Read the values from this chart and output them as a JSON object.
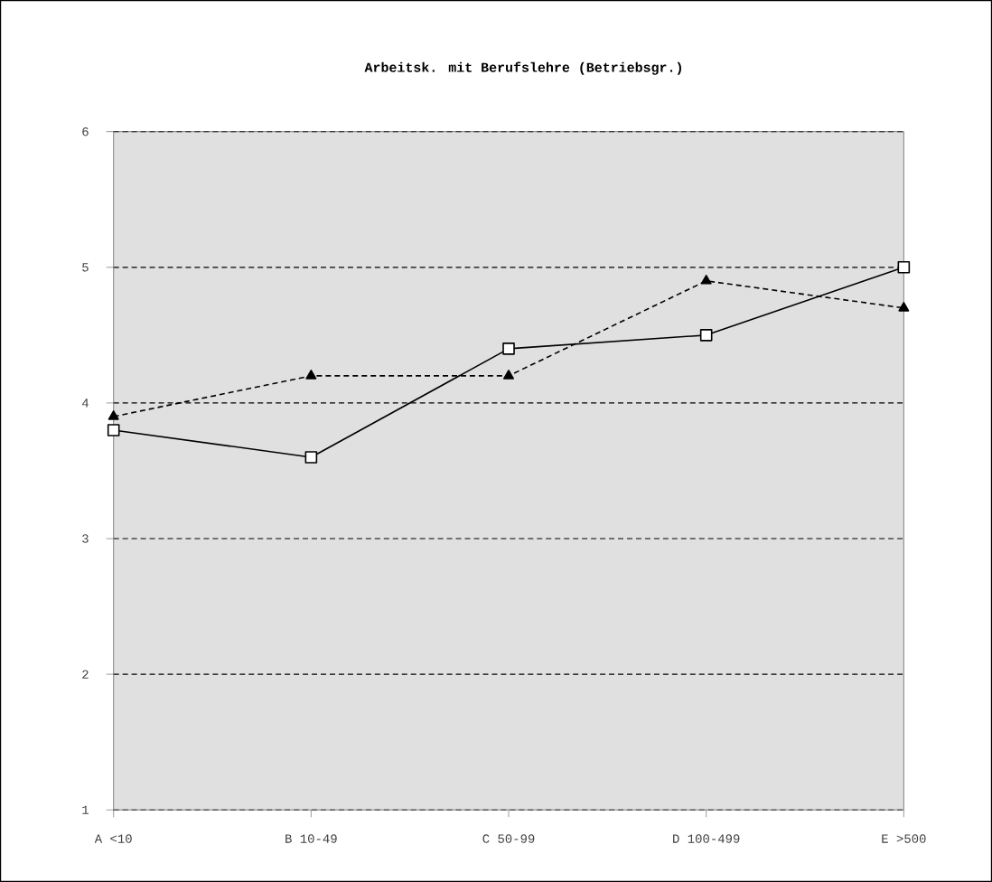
{
  "chart_data": {
    "type": "line",
    "title": "Arbeitsk. mit Berufslehre (Betriebsgr.)",
    "categories": [
      "A <10",
      "B 10-49",
      "C 50-99",
      "D 100-499",
      "E >500"
    ],
    "series": [
      {
        "color": "#000000",
        "marker": "square",
        "line_style": "solid",
        "values": [
          3.8,
          3.6,
          4.4,
          4.5,
          5.0
        ]
      },
      {
        "color": "#000000",
        "marker": "triangle",
        "line_style": "dashed",
        "values": [
          3.9,
          4.2,
          4.2,
          4.9,
          4.7
        ]
      }
    ],
    "ylim": [
      1,
      6
    ],
    "yticks": [
      1,
      2,
      3,
      4,
      5,
      6
    ],
    "grid": "y"
  }
}
